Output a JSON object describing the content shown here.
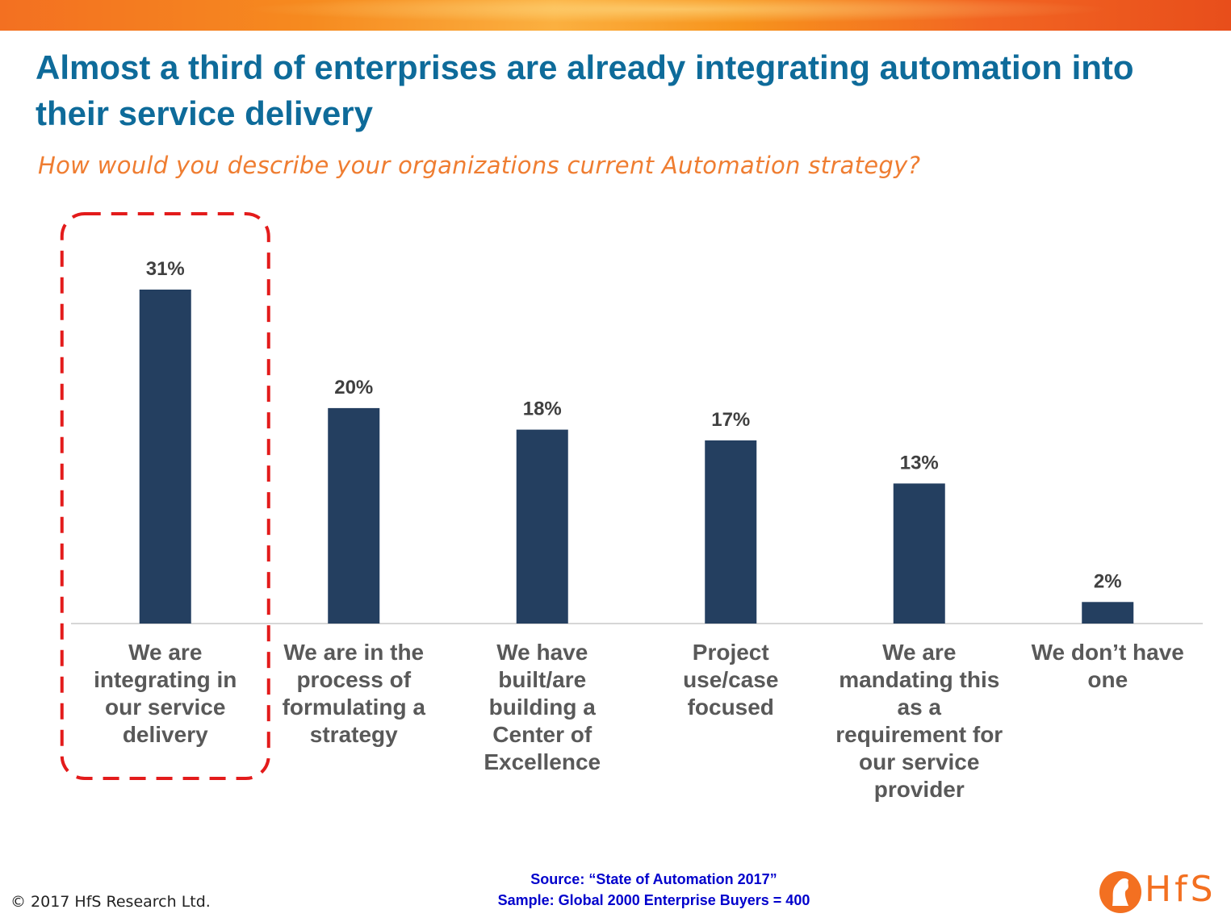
{
  "header": {
    "title": "Almost a third of enterprises are already integrating automation into their service delivery",
    "subtitle": "How would you describe your organizations current Automation strategy?"
  },
  "chart_data": {
    "type": "bar",
    "categories": [
      "We are integrating in our service delivery",
      "We are in the process of formulating a strategy",
      "We have built/are building a Center of Excellence",
      "Project use/case focused",
      "We are mandating this as a requirement for our service provider",
      "We don’t have one"
    ],
    "category_lines": [
      [
        "We are",
        "integrating in",
        "our service",
        "delivery"
      ],
      [
        "We are in the",
        "process of",
        "formulating a",
        "strategy"
      ],
      [
        "We have",
        "built/are",
        "building a",
        "Center of",
        "Excellence"
      ],
      [
        "Project",
        "use/case",
        "focused"
      ],
      [
        "We are",
        "mandating this",
        "as a",
        "requirement for",
        "our service",
        "provider"
      ],
      [
        "We don’t have",
        "one"
      ]
    ],
    "values": [
      31,
      20,
      18,
      17,
      13,
      2
    ],
    "data_labels": [
      "31%",
      "20%",
      "18%",
      "17%",
      "13%",
      "2%"
    ],
    "ylim": [
      0,
      31
    ],
    "highlighted_category": 0,
    "bar_color": "#243f60",
    "highlight_color": "#e31b1b",
    "grid": false,
    "legend": "none"
  },
  "footer": {
    "source": "Source: “State of Automation 2017”",
    "sample": "Sample: Global 2000 Enterprise Buyers = 400",
    "copyright": "© 2017 HfS Research Ltd.",
    "logo_text": "HfS"
  }
}
